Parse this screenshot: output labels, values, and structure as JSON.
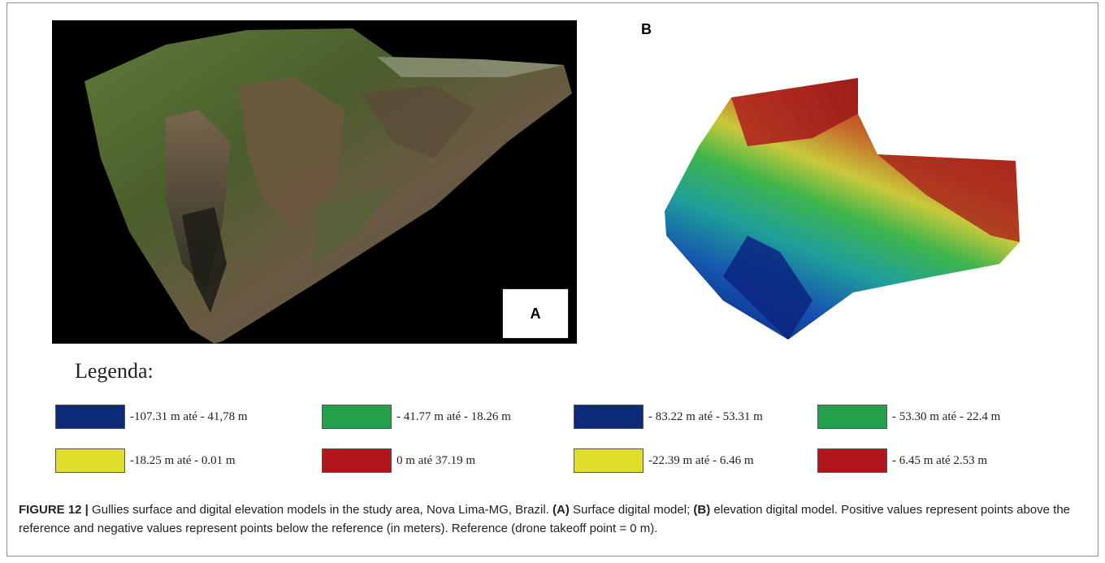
{
  "panels": {
    "a_label": "A",
    "b_label": "B"
  },
  "legend": {
    "title": "Legenda:",
    "items": [
      {
        "text": "-107.31 m  até  - 41,78 m",
        "color": "#0d2a78"
      },
      {
        "text": "- 41.77 m  até  - 18.26 m",
        "color": "#23a04c"
      },
      {
        "text": "- 83.22 m  até  - 53.31 m",
        "color": "#0d2a78"
      },
      {
        "text": "- 53.30 m  até  - 22.4 m",
        "color": "#23a04c"
      },
      {
        "text": "-18.25 m  até  - 0.01 m",
        "color": "#e0de2c"
      },
      {
        "text": "0 m  até  37.19 m",
        "color": "#b0161c"
      },
      {
        "text": "-22.39 m  até  - 6.46 m",
        "color": "#e0de2c"
      },
      {
        "text": "- 6.45 m  até  2.53 m",
        "color": "#b0161c"
      }
    ]
  },
  "caption": {
    "label": "FIGURE 12 |",
    "intro": " Gullies surface and digital elevation models in the study area, Nova Lima-MG, Brazil. ",
    "a_ref": "(A)",
    "a_text": " Surface digital model; ",
    "b_ref": "(B)",
    "b_text": " elevation digital model. Positive values represent points above the reference and negative values represent points below the reference (in meters). Reference (drone takeoff point = 0 m)."
  }
}
